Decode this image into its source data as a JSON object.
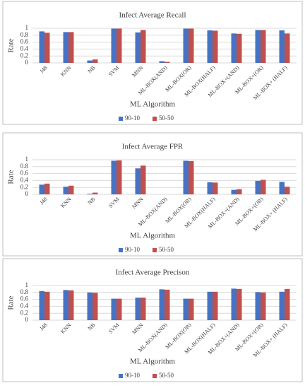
{
  "chart_data": [
    {
      "type": "bar",
      "title": "Infect Average  Recall",
      "y_label": "Rate",
      "x_label": "ML Algorithm",
      "categories": [
        "J48",
        "KNN",
        "NB",
        "SVM",
        "MNN",
        "ML-BOX(AND)",
        "ML-BOX(OR)",
        "ML-BOX(HALF)",
        "ML-BOX+(AND)",
        "ML-BOX+(OR)",
        "ML-BOX+ (HALF)"
      ],
      "series": [
        {
          "name": "90-10",
          "color": "#4472c4",
          "values": [
            0.91,
            0.89,
            0.07,
            0.99,
            0.88,
            0.05,
            0.99,
            0.94,
            0.85,
            0.95,
            0.94
          ]
        },
        {
          "name": "50-50",
          "color": "#c0504d",
          "values": [
            0.87,
            0.89,
            0.1,
            0.99,
            0.95,
            0.03,
            0.99,
            0.93,
            0.84,
            0.95,
            0.85
          ]
        }
      ],
      "ylim": [
        0,
        1
      ],
      "yticks": [
        0,
        0.2,
        0.4,
        0.6,
        0.8,
        1
      ],
      "grid": true,
      "legend": "bottom"
    },
    {
      "type": "bar",
      "title": "Infect Average  FPR",
      "y_label": "Rate",
      "x_label": "ML Algorithm",
      "categories": [
        "J48",
        "KNN",
        "NB",
        "SVM",
        "MNN",
        "ML-BOX(AND)",
        "ML-BOX(OR)",
        "ML-BOX(HALF)",
        "ML-BOX+(AND)",
        "ML-BOX+(OR)",
        "ML-BOX+ (HALF)"
      ],
      "series": [
        {
          "name": "90-10",
          "color": "#4472c4",
          "values": [
            0.28,
            0.22,
            0.02,
            0.97,
            0.75,
            0.0,
            0.97,
            0.35,
            0.13,
            0.39,
            0.36
          ]
        },
        {
          "name": "50-50",
          "color": "#c0504d",
          "values": [
            0.31,
            0.25,
            0.05,
            0.98,
            0.83,
            0.0,
            0.96,
            0.34,
            0.15,
            0.42,
            0.22
          ]
        }
      ],
      "ylim": [
        0,
        1
      ],
      "yticks": [
        0,
        0.2,
        0.4,
        0.6,
        0.8,
        1
      ],
      "grid": true,
      "legend": "bottom"
    },
    {
      "type": "bar",
      "title": "Infect Average Precison",
      "y_label": "Rate",
      "x_label": "ML Algorithm",
      "categories": [
        "J48",
        "KNN",
        "NB",
        "SVM",
        "MNN",
        "ML-BOX(AND)",
        "ML-BOX(OR)",
        "ML-BOX(HALF)",
        "ML-BOX+(AND)",
        "ML-BOX+(OR)",
        "ML-BOX+ (HALF)"
      ],
      "series": [
        {
          "name": "90-10",
          "color": "#4472c4",
          "values": [
            0.84,
            0.87,
            0.8,
            0.62,
            0.65,
            0.89,
            0.62,
            0.82,
            0.91,
            0.81,
            0.82
          ]
        },
        {
          "name": "50-50",
          "color": "#c0504d",
          "values": [
            0.82,
            0.86,
            0.79,
            0.62,
            0.65,
            0.88,
            0.62,
            0.82,
            0.9,
            0.8,
            0.9
          ]
        }
      ],
      "ylim": [
        0,
        1
      ],
      "yticks": [
        0,
        0.2,
        0.4,
        0.6,
        0.8,
        1
      ],
      "grid": true,
      "legend": "bottom"
    }
  ]
}
